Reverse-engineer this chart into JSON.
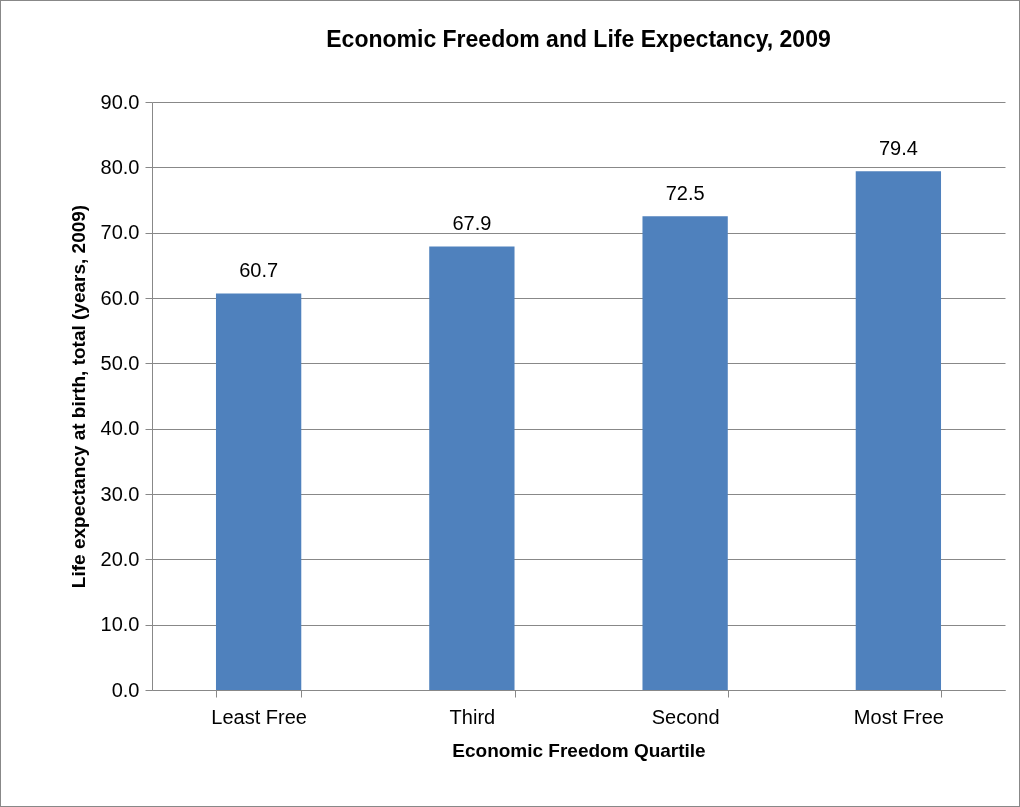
{
  "chart_data": {
    "type": "bar",
    "title": "Economic Freedom and Life Expectancy, 2009",
    "xlabel": "Economic Freedom Quartile",
    "ylabel": "Life expectancy at birth, total (years, 2009)",
    "categories": [
      "Least Free",
      "Third",
      "Second",
      "Most Free"
    ],
    "values": [
      60.7,
      67.9,
      72.5,
      79.4
    ],
    "color": "#4f81bd",
    "ylim": [
      0,
      90
    ],
    "yticks": [
      {
        "value": 0,
        "label": "0.0"
      },
      {
        "value": 10,
        "label": "10.0"
      },
      {
        "value": 20,
        "label": "20.0"
      },
      {
        "value": 30,
        "label": "30.0"
      },
      {
        "value": 40,
        "label": "40.0"
      },
      {
        "value": 50,
        "label": "50.0"
      },
      {
        "value": 60,
        "label": "60.0"
      },
      {
        "value": 70,
        "label": "70.0"
      },
      {
        "value": 80,
        "label": "80.0"
      },
      {
        "value": 90,
        "label": "90.0"
      }
    ],
    "grid": "y",
    "data_labels": true
  }
}
